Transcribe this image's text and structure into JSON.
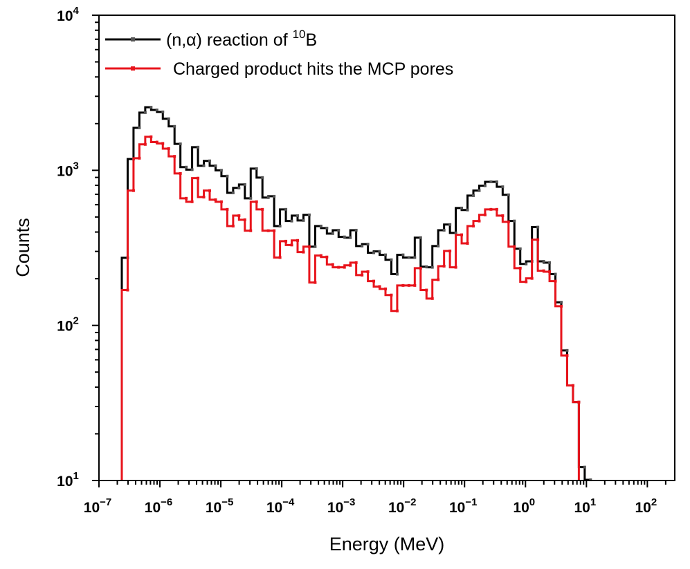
{
  "chart_data": {
    "type": "line",
    "style": "step-histogram",
    "title": "",
    "xlabel": "Energy (MeV)",
    "ylabel": "Counts",
    "xscale": "log",
    "yscale": "log",
    "xlim": [
      1e-07,
      282
    ],
    "ylim": [
      10,
      10000
    ],
    "x_tick_exponents": [
      -7,
      -6,
      -5,
      -4,
      -3,
      -2,
      -1,
      0,
      1,
      2
    ],
    "y_tick_exponents": [
      1,
      2,
      3,
      4
    ],
    "grid": false,
    "legend": "top-left",
    "bin_range": [
      2.37e-07,
      11.7
    ],
    "bin_spacing": "log-uniform",
    "series": [
      {
        "name": "(n,α) reaction of 10B",
        "color": "#000000",
        "marker_color": "#555555",
        "values": [
          273,
          1183,
          1880,
          2356,
          2550,
          2450,
          2380,
          2150,
          1920,
          1480,
          1048,
          1010,
          1410,
          1070,
          1150,
          1070,
          1000,
          917,
          716,
          770,
          810,
          660,
          1025,
          898,
          667,
          680,
          437,
          560,
          471,
          510,
          475,
          516,
          322,
          437,
          424,
          391,
          411,
          372,
          368,
          411,
          325,
          334,
          294,
          300,
          285,
          265,
          214,
          285,
          274,
          274,
          368,
          239,
          237,
          325,
          411,
          447,
          395,
          571,
          555,
          687,
          740,
          795,
          843,
          843,
          783,
          695,
          471,
          312,
          249,
          259,
          430,
          259,
          254,
          214,
          141,
          69,
          41,
          32,
          12.2,
          10.1
        ]
      },
      {
        "name": "Charged product hits the MCP pores",
        "color": "#e8141c",
        "marker_color": "#e8141c",
        "values": [
          169,
          740,
          1197,
          1470,
          1645,
          1520,
          1490,
          1380,
          1230,
          954,
          660,
          627,
          890,
          672,
          740,
          646,
          627,
          560,
          437,
          510,
          480,
          408,
          627,
          560,
          408,
          408,
          274,
          349,
          330,
          353,
          297,
          322,
          189,
          282,
          276,
          247,
          237,
          237,
          244,
          254,
          211,
          222,
          193,
          178,
          172,
          157,
          124,
          181,
          181,
          181,
          234,
          169,
          149,
          197,
          241,
          302,
          237,
          384,
          338,
          437,
          471,
          516,
          560,
          560,
          510,
          465,
          322,
          234,
          191,
          201,
          357,
          225,
          222,
          193,
          133,
          64,
          41,
          32,
          null,
          null
        ]
      }
    ]
  }
}
